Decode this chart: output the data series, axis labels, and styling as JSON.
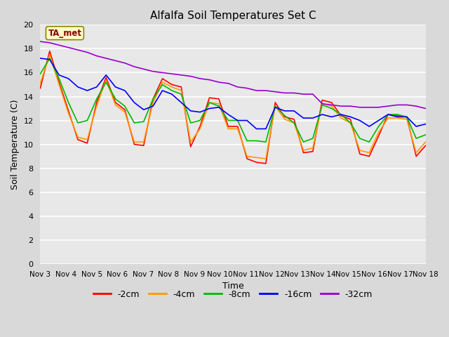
{
  "title": "Alfalfa Soil Temperatures Set C",
  "xlabel": "Time",
  "ylabel": "Soil Temperature (C)",
  "ylim": [
    0,
    20
  ],
  "yticks": [
    0,
    2,
    4,
    6,
    8,
    10,
    12,
    14,
    16,
    18,
    20
  ],
  "bg_color": "#d9d9d9",
  "plot_bg_color": "#e8e8e8",
  "legend_label": "TA_met",
  "series_colors": {
    "-2cm": "#ff0000",
    "-4cm": "#ff9900",
    "-8cm": "#00bb00",
    "-16cm": "#0000ff",
    "-32cm": "#9900cc"
  },
  "x_labels": [
    "Nov 3",
    "Nov 4",
    "Nov 5",
    "Nov 6",
    "Nov 7",
    "Nov 8",
    "Nov 9",
    "Nov 10",
    "Nov 11",
    "Nov 12",
    "Nov 13",
    "Nov 14",
    "Nov 15",
    "Nov 16",
    "Nov 17",
    "Nov 18"
  ],
  "data": {
    "-2cm": [
      14.7,
      17.8,
      15.2,
      12.8,
      10.4,
      10.1,
      13.5,
      15.6,
      13.5,
      12.9,
      10.0,
      9.9,
      13.8,
      15.5,
      15.0,
      14.8,
      9.8,
      11.5,
      13.9,
      13.8,
      11.5,
      11.5,
      8.8,
      8.5,
      8.4,
      13.5,
      12.3,
      12.1,
      9.3,
      9.4,
      13.7,
      13.5,
      12.4,
      12.1,
      9.2,
      9.0,
      10.7,
      12.5,
      12.4,
      12.3,
      9.0,
      9.9
    ],
    "-4cm": [
      15.1,
      17.5,
      15.0,
      12.6,
      10.6,
      10.4,
      13.2,
      15.4,
      13.3,
      12.7,
      10.2,
      10.2,
      13.5,
      15.2,
      14.8,
      14.5,
      10.2,
      11.3,
      13.5,
      13.4,
      11.3,
      11.3,
      9.0,
      8.9,
      8.8,
      13.2,
      12.1,
      11.8,
      9.5,
      9.7,
      13.4,
      13.2,
      12.2,
      11.8,
      9.5,
      9.3,
      11.0,
      12.2,
      12.2,
      12.1,
      9.3,
      10.2
    ],
    "-8cm": [
      15.9,
      17.2,
      15.5,
      13.5,
      11.8,
      12.0,
      13.8,
      15.2,
      13.8,
      13.2,
      11.8,
      11.9,
      13.8,
      15.0,
      14.5,
      14.2,
      11.8,
      12.0,
      13.5,
      13.2,
      12.0,
      12.0,
      10.3,
      10.3,
      10.2,
      13.2,
      12.4,
      11.8,
      10.2,
      10.5,
      13.3,
      13.0,
      12.5,
      11.8,
      10.5,
      10.2,
      11.5,
      12.5,
      12.5,
      12.3,
      10.5,
      10.8
    ],
    "-16cm": [
      17.2,
      17.1,
      15.8,
      15.5,
      14.8,
      14.5,
      14.8,
      15.8,
      14.8,
      14.5,
      13.5,
      12.9,
      13.2,
      14.5,
      14.2,
      13.5,
      12.8,
      12.7,
      13.0,
      13.1,
      12.5,
      12.0,
      12.0,
      11.3,
      11.3,
      13.1,
      12.8,
      12.8,
      12.2,
      12.2,
      12.5,
      12.3,
      12.5,
      12.3,
      12.0,
      11.5,
      12.0,
      12.5,
      12.3,
      12.3,
      11.5,
      11.7
    ],
    "-32cm": [
      18.6,
      18.5,
      18.3,
      18.1,
      17.9,
      17.7,
      17.4,
      17.2,
      17.0,
      16.8,
      16.5,
      16.3,
      16.1,
      16.0,
      15.9,
      15.8,
      15.7,
      15.5,
      15.4,
      15.2,
      15.1,
      14.8,
      14.7,
      14.5,
      14.5,
      14.4,
      14.3,
      14.3,
      14.2,
      14.2,
      13.4,
      13.3,
      13.2,
      13.2,
      13.1,
      13.1,
      13.1,
      13.2,
      13.3,
      13.3,
      13.2,
      13.0
    ]
  },
  "n_points": 42
}
